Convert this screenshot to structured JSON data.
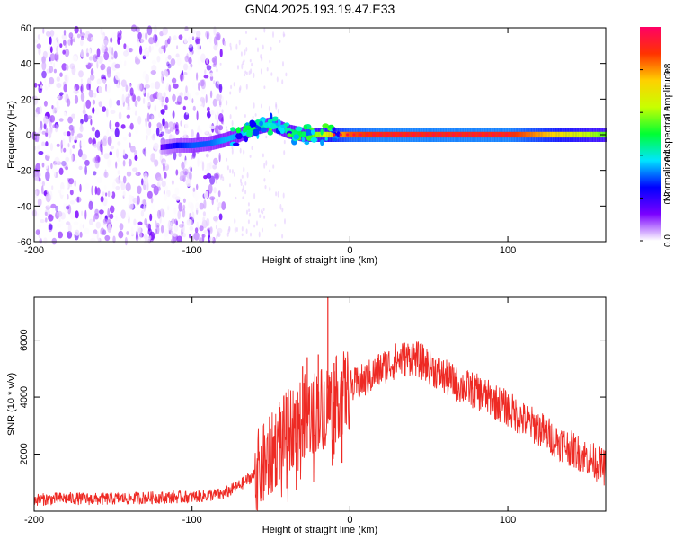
{
  "title": "GN04.2025.193.19.47.E33",
  "colors": {
    "snr_line": "#ee2a24",
    "colormap": [
      "#ffffff",
      "#7a00ff",
      "#0000ff",
      "#00e5ff",
      "#00ff33",
      "#c8ff00",
      "#ffd000",
      "#ff3300",
      "#ff0066"
    ]
  },
  "chart_data": [
    {
      "type": "heatmap",
      "xlabel": "Height of straight line (km)",
      "ylabel": "Frequency (Hz)",
      "xlim": [
        -200,
        162
      ],
      "ylim": [
        -60,
        60
      ],
      "xticks": [
        {
          "value": -200,
          "label": "-200"
        },
        {
          "value": -100,
          "label": "-100"
        },
        {
          "value": 0,
          "label": "0"
        },
        {
          "value": 100,
          "label": "100"
        }
      ],
      "yticks": [
        {
          "value": 60,
          "label": "60"
        },
        {
          "value": 40,
          "label": "40"
        },
        {
          "value": 20,
          "label": "20"
        },
        {
          "value": 0,
          "label": "0"
        },
        {
          "value": -20,
          "label": "-20"
        },
        {
          "value": -40,
          "label": "-40"
        },
        {
          "value": -60,
          "label": "-60"
        }
      ],
      "colorbar": {
        "label": "Normalized spectral amplitude",
        "range": [
          0,
          1
        ],
        "ticks": [
          {
            "value": 0.0,
            "label": "0.0"
          },
          {
            "value": 0.2,
            "label": "0.2"
          },
          {
            "value": 0.4,
            "label": "0.4"
          },
          {
            "value": 0.6,
            "label": "0.6"
          },
          {
            "value": 0.8,
            "label": "0.8"
          }
        ]
      },
      "ridge": {
        "x": [
          -120,
          -110,
          -100,
          -90,
          -80,
          -70,
          -60,
          -50,
          -40,
          -30,
          -20,
          -10,
          0,
          20,
          60,
          100,
          162
        ],
        "freq": [
          -7,
          -6,
          -6,
          -5,
          -3,
          0,
          4,
          6,
          2,
          0,
          0,
          0,
          0,
          0,
          0,
          0,
          0
        ],
        "amplitude": [
          0.15,
          0.25,
          0.3,
          0.3,
          0.35,
          0.35,
          0.45,
          0.4,
          0.45,
          0.5,
          0.6,
          0.75,
          0.85,
          0.9,
          0.9,
          0.9,
          0.55
        ]
      },
      "noise_region_x": [
        -200,
        -80
      ]
    },
    {
      "type": "line",
      "xlabel": "Height of straight line (km)",
      "ylabel": "SNR (10 * v/v)",
      "xlim": [
        -200,
        162
      ],
      "ylim": [
        0,
        7500
      ],
      "xticks": [
        {
          "value": -200,
          "label": "-200"
        },
        {
          "value": -100,
          "label": "-100"
        },
        {
          "value": 0,
          "label": "0"
        },
        {
          "value": 100,
          "label": "100"
        }
      ],
      "yticks": [
        {
          "value": 2000,
          "label": "2000"
        },
        {
          "value": 4000,
          "label": "4000"
        },
        {
          "value": 6000,
          "label": "6000"
        }
      ],
      "series": [
        {
          "x": [
            -200,
            -180,
            -160,
            -140,
            -120,
            -100,
            -80,
            -70,
            -60,
            -50,
            -45,
            -40,
            -35,
            -30,
            -25,
            -20,
            -15,
            -10,
            -5,
            0,
            10,
            20,
            30,
            40,
            50,
            60,
            70,
            80,
            90,
            100,
            110,
            120,
            130,
            140,
            150,
            162
          ],
          "y": [
            400,
            450,
            420,
            450,
            480,
            500,
            600,
            900,
            1300,
            1900,
            2500,
            2700,
            3100,
            3300,
            3400,
            3600,
            3700,
            3900,
            4100,
            4300,
            4600,
            5000,
            5300,
            5400,
            5100,
            4700,
            4400,
            4200,
            3900,
            3600,
            3200,
            2900,
            2500,
            2200,
            1900,
            1500
          ]
        }
      ],
      "spikes": [
        {
          "x": -40,
          "y": 4000
        },
        {
          "x": -30,
          "y": 5100
        },
        {
          "x": -27,
          "y": 5400
        },
        {
          "x": -20,
          "y": 5500
        },
        {
          "x": -14,
          "y": 7500
        },
        {
          "x": -10,
          "y": 5200
        },
        {
          "x": -5,
          "y": 4900
        }
      ]
    }
  ]
}
